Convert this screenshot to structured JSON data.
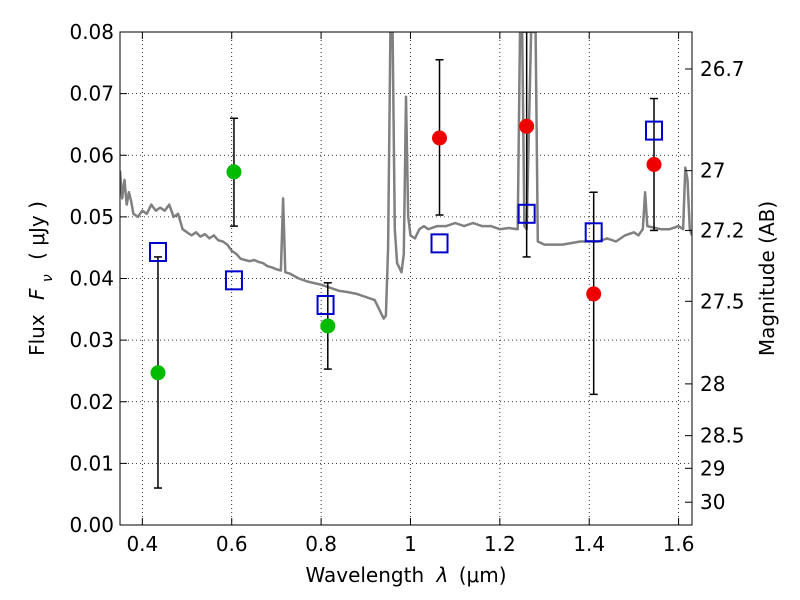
{
  "chart_data": {
    "type": "scatter",
    "xlabel_prefix": "Wavelength",
    "xlabel_symbol": "λ",
    "xlabel_unit": "(μm)",
    "ylabel_prefix": "Flux",
    "ylabel_symbol": "F",
    "ylabel_subscript": "ν",
    "ylabel_unit": "( μJy )",
    "y2label": "Magnitude (AB)",
    "xlim": [
      0.35,
      1.63
    ],
    "ylim": [
      0.0,
      0.08
    ],
    "grid": true,
    "x_ticks": [
      {
        "value": 0.4,
        "label": "0.4"
      },
      {
        "value": 0.6,
        "label": "0.6"
      },
      {
        "value": 0.8,
        "label": "0.8"
      },
      {
        "value": 1.0,
        "label": "1"
      },
      {
        "value": 1.2,
        "label": "1.2"
      },
      {
        "value": 1.4,
        "label": "1.4"
      },
      {
        "value": 1.6,
        "label": "1.6"
      }
    ],
    "y_ticks": [
      {
        "value": 0.0,
        "label": "0.00"
      },
      {
        "value": 0.01,
        "label": "0.01"
      },
      {
        "value": 0.02,
        "label": "0.02"
      },
      {
        "value": 0.03,
        "label": "0.03"
      },
      {
        "value": 0.04,
        "label": "0.04"
      },
      {
        "value": 0.05,
        "label": "0.05"
      },
      {
        "value": 0.06,
        "label": "0.06"
      },
      {
        "value": 0.07,
        "label": "0.07"
      },
      {
        "value": 0.08,
        "label": "0.08"
      }
    ],
    "mag_ticks": [
      {
        "flux": 0.074,
        "label": "26.7"
      },
      {
        "flux": 0.0575,
        "label": "27"
      },
      {
        "flux": 0.0478,
        "label": "27.2"
      },
      {
        "flux": 0.0363,
        "label": "27.5"
      },
      {
        "flux": 0.0229,
        "label": "28"
      },
      {
        "flux": 0.0145,
        "label": "28.5"
      },
      {
        "flux": 0.0092,
        "label": "29"
      },
      {
        "flux": 0.0037,
        "label": "30"
      }
    ],
    "colors": {
      "green_points": "#00bb00",
      "red_points": "#ee0000",
      "model_boxes": "#0000cc",
      "spectrum": "#808080",
      "errorbars": "#000000"
    },
    "series": [
      {
        "name": "model spectrum",
        "kind": "line",
        "points": [
          [
            0.35,
            0.0575
          ],
          [
            0.355,
            0.053
          ],
          [
            0.36,
            0.056
          ],
          [
            0.365,
            0.052
          ],
          [
            0.37,
            0.054
          ],
          [
            0.375,
            0.0525
          ],
          [
            0.38,
            0.0505
          ],
          [
            0.39,
            0.05
          ],
          [
            0.4,
            0.051
          ],
          [
            0.41,
            0.0505
          ],
          [
            0.42,
            0.052
          ],
          [
            0.43,
            0.051
          ],
          [
            0.44,
            0.0515
          ],
          [
            0.45,
            0.051
          ],
          [
            0.46,
            0.052
          ],
          [
            0.47,
            0.05
          ],
          [
            0.48,
            0.0505
          ],
          [
            0.49,
            0.048
          ],
          [
            0.5,
            0.0475
          ],
          [
            0.51,
            0.047
          ],
          [
            0.52,
            0.0475
          ],
          [
            0.53,
            0.0468
          ],
          [
            0.54,
            0.0472
          ],
          [
            0.55,
            0.0465
          ],
          [
            0.56,
            0.047
          ],
          [
            0.57,
            0.0462
          ],
          [
            0.58,
            0.046
          ],
          [
            0.59,
            0.0455
          ],
          [
            0.6,
            0.0445
          ],
          [
            0.61,
            0.044
          ],
          [
            0.62,
            0.0432
          ],
          [
            0.63,
            0.043
          ],
          [
            0.64,
            0.0428
          ],
          [
            0.65,
            0.043
          ],
          [
            0.66,
            0.0427
          ],
          [
            0.67,
            0.0425
          ],
          [
            0.68,
            0.042
          ],
          [
            0.69,
            0.0418
          ],
          [
            0.7,
            0.0415
          ],
          [
            0.71,
            0.0413
          ],
          [
            0.715,
            0.053
          ],
          [
            0.72,
            0.041
          ],
          [
            0.73,
            0.0408
          ],
          [
            0.75,
            0.04
          ],
          [
            0.77,
            0.0395
          ],
          [
            0.8,
            0.039
          ],
          [
            0.82,
            0.0385
          ],
          [
            0.84,
            0.038
          ],
          [
            0.86,
            0.0378
          ],
          [
            0.88,
            0.0375
          ],
          [
            0.9,
            0.037
          ],
          [
            0.92,
            0.0365
          ],
          [
            0.93,
            0.035
          ],
          [
            0.94,
            0.0335
          ],
          [
            0.945,
            0.034
          ],
          [
            0.95,
            0.045
          ],
          [
            0.955,
            0.08
          ],
          [
            0.96,
            0.08
          ],
          [
            0.965,
            0.048
          ],
          [
            0.97,
            0.0425
          ],
          [
            0.98,
            0.041
          ],
          [
            0.985,
            0.044
          ],
          [
            0.99,
            0.0695
          ],
          [
            0.995,
            0.05
          ],
          [
            1.0,
            0.047
          ],
          [
            1.01,
            0.0465
          ],
          [
            1.02,
            0.048
          ],
          [
            1.03,
            0.0485
          ],
          [
            1.04,
            0.048
          ],
          [
            1.06,
            0.0485
          ],
          [
            1.08,
            0.0485
          ],
          [
            1.1,
            0.049
          ],
          [
            1.12,
            0.0485
          ],
          [
            1.14,
            0.049
          ],
          [
            1.16,
            0.0485
          ],
          [
            1.18,
            0.0485
          ],
          [
            1.2,
            0.048
          ],
          [
            1.22,
            0.0482
          ],
          [
            1.24,
            0.048
          ],
          [
            1.245,
            0.08
          ],
          [
            1.25,
            0.08
          ],
          [
            1.255,
            0.0485
          ],
          [
            1.26,
            0.048
          ],
          [
            1.27,
            0.08
          ],
          [
            1.28,
            0.08
          ],
          [
            1.285,
            0.046
          ],
          [
            1.3,
            0.0455
          ],
          [
            1.34,
            0.0455
          ],
          [
            1.38,
            0.046
          ],
          [
            1.42,
            0.046
          ],
          [
            1.44,
            0.0465
          ],
          [
            1.46,
            0.046
          ],
          [
            1.48,
            0.047
          ],
          [
            1.5,
            0.0475
          ],
          [
            1.51,
            0.047
          ],
          [
            1.52,
            0.048
          ],
          [
            1.525,
            0.054
          ],
          [
            1.53,
            0.0485
          ],
          [
            1.56,
            0.048
          ],
          [
            1.58,
            0.048
          ],
          [
            1.6,
            0.0485
          ],
          [
            1.61,
            0.048
          ],
          [
            1.615,
            0.058
          ],
          [
            1.62,
            0.056
          ],
          [
            1.625,
            0.048
          ],
          [
            1.63,
            0.047
          ]
        ]
      },
      {
        "name": "green detections",
        "kind": "points",
        "points": [
          {
            "x": 0.435,
            "y": 0.0247,
            "lo": 0.006,
            "hi": 0.0435
          },
          {
            "x": 0.605,
            "y": 0.0573,
            "lo": 0.0485,
            "hi": 0.066
          },
          {
            "x": 0.815,
            "y": 0.0323,
            "lo": 0.0253,
            "hi": 0.0393
          }
        ]
      },
      {
        "name": "red detections",
        "kind": "points",
        "points": [
          {
            "x": 1.065,
            "y": 0.0628,
            "lo": 0.0503,
            "hi": 0.0755
          },
          {
            "x": 1.26,
            "y": 0.0647,
            "lo": 0.0435,
            "hi": 0.08
          },
          {
            "x": 1.41,
            "y": 0.0375,
            "lo": 0.0212,
            "hi": 0.054
          },
          {
            "x": 1.545,
            "y": 0.0585,
            "lo": 0.0478,
            "hi": 0.0692
          }
        ]
      },
      {
        "name": "model photometry",
        "kind": "boxes",
        "points": [
          {
            "x": 0.435,
            "y": 0.0443
          },
          {
            "x": 0.605,
            "y": 0.0397
          },
          {
            "x": 0.81,
            "y": 0.0357
          },
          {
            "x": 1.065,
            "y": 0.0457
          },
          {
            "x": 1.26,
            "y": 0.0505
          },
          {
            "x": 1.41,
            "y": 0.0475
          },
          {
            "x": 1.545,
            "y": 0.064
          }
        ]
      }
    ]
  }
}
